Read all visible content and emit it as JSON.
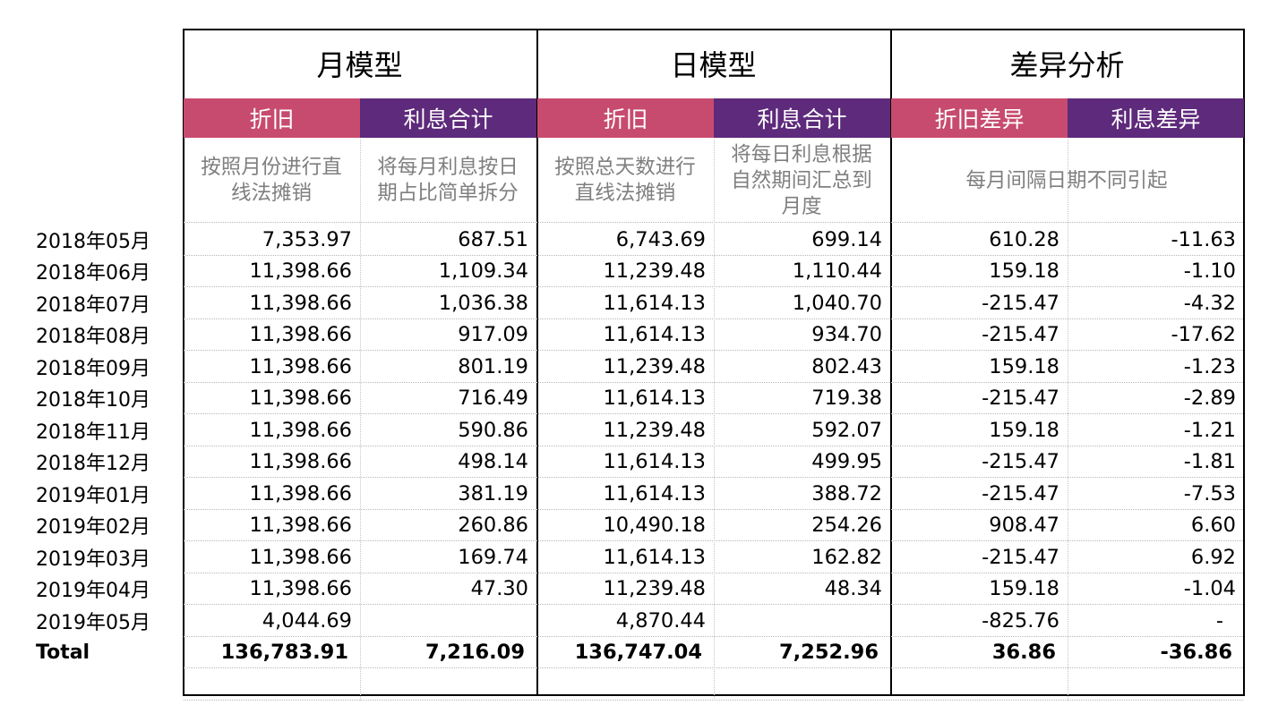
{
  "groups": [
    {
      "title": "月模型",
      "subs": [
        "折旧",
        "利息合计"
      ],
      "descs": [
        "按照月份进行直\n线法摊销",
        "将每月利息按日\n期占比简单拆分"
      ]
    },
    {
      "title": "日模型",
      "subs": [
        "折旧",
        "利息合计"
      ],
      "descs": [
        "按照总天数进行\n直线法摊销",
        "将每日利息根据\n自然期间汇总到\n月度"
      ]
    },
    {
      "title": "差异分析",
      "subs": [
        "折旧差异",
        "利息差异"
      ],
      "desc_merged": "每月间隔日期不同引起"
    }
  ],
  "colors": {
    "pink": "#c74b6f",
    "purple": "#5e2a7b",
    "desc_text": "#7f7f7f"
  },
  "rows": [
    {
      "label": "2018年05月",
      "values": [
        "7,353.97",
        "687.51",
        "6,743.69",
        "699.14",
        "610.28",
        "-11.63"
      ]
    },
    {
      "label": "2018年06月",
      "values": [
        "11,398.66",
        "1,109.34",
        "11,239.48",
        "1,110.44",
        "159.18",
        "-1.10"
      ]
    },
    {
      "label": "2018年07月",
      "values": [
        "11,398.66",
        "1,036.38",
        "11,614.13",
        "1,040.70",
        "-215.47",
        "-4.32"
      ]
    },
    {
      "label": "2018年08月",
      "values": [
        "11,398.66",
        "917.09",
        "11,614.13",
        "934.70",
        "-215.47",
        "-17.62"
      ]
    },
    {
      "label": "2018年09月",
      "values": [
        "11,398.66",
        "801.19",
        "11,239.48",
        "802.43",
        "159.18",
        "-1.23"
      ]
    },
    {
      "label": "2018年10月",
      "values": [
        "11,398.66",
        "716.49",
        "11,614.13",
        "719.38",
        "-215.47",
        "-2.89"
      ]
    },
    {
      "label": "2018年11月",
      "values": [
        "11,398.66",
        "590.86",
        "11,239.48",
        "592.07",
        "159.18",
        "-1.21"
      ]
    },
    {
      "label": "2018年12月",
      "values": [
        "11,398.66",
        "498.14",
        "11,614.13",
        "499.95",
        "-215.47",
        "-1.81"
      ]
    },
    {
      "label": "2019年01月",
      "values": [
        "11,398.66",
        "381.19",
        "11,614.13",
        "388.72",
        "-215.47",
        "-7.53"
      ]
    },
    {
      "label": "2019年02月",
      "values": [
        "11,398.66",
        "260.86",
        "10,490.18",
        "254.26",
        "908.47",
        "6.60"
      ]
    },
    {
      "label": "2019年03月",
      "values": [
        "11,398.66",
        "169.74",
        "11,614.13",
        "162.82",
        "-215.47",
        "6.92"
      ]
    },
    {
      "label": "2019年04月",
      "values": [
        "11,398.66",
        "47.30",
        "11,239.48",
        "48.34",
        "159.18",
        "-1.04"
      ]
    },
    {
      "label": "2019年05月",
      "values": [
        "4,044.69",
        "",
        "4,870.44",
        "",
        "-825.76",
        "-"
      ]
    }
  ],
  "total": {
    "label": "Total",
    "values": [
      "136,783.91",
      "7,216.09",
      "136,747.04",
      "7,252.96",
      "36.86",
      "-36.86"
    ]
  }
}
